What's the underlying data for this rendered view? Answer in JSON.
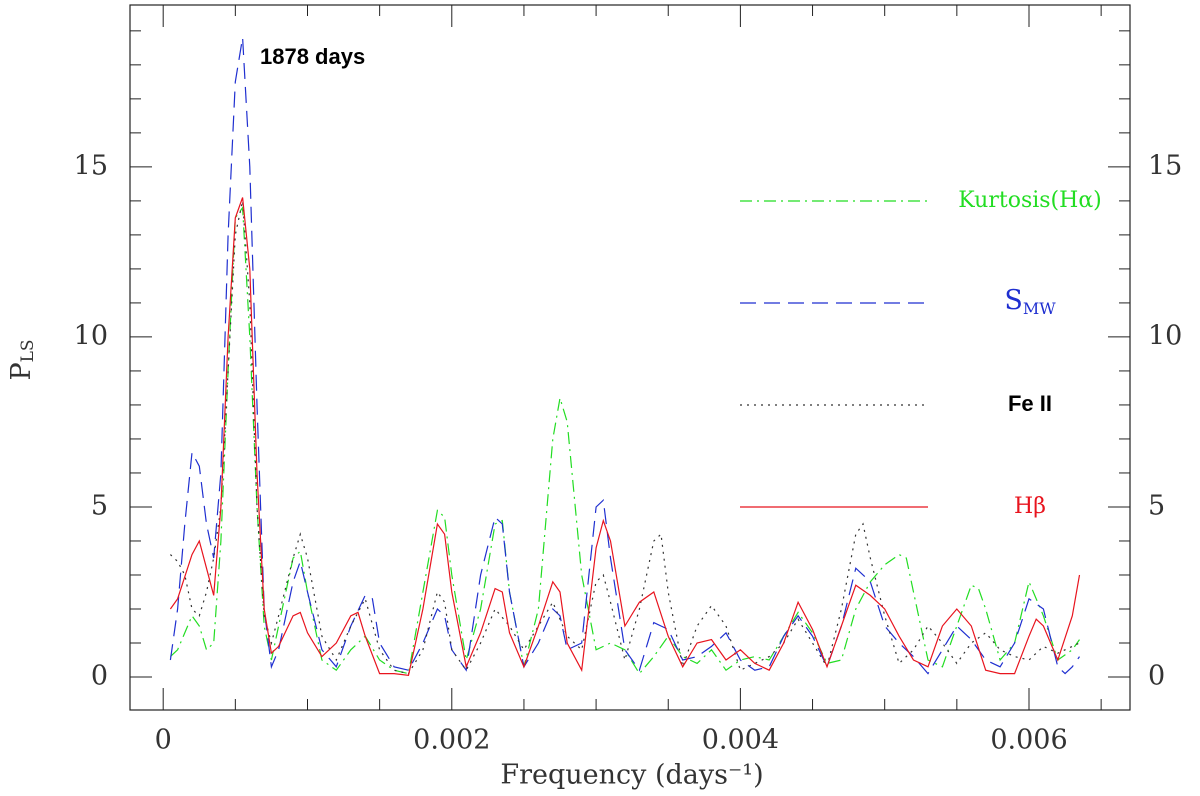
{
  "chart_data": {
    "type": "line",
    "annotation": "1878 days",
    "xlabel": "Frequency (days⁻¹)",
    "ylabel": "P",
    "ylabel_sub": "LS",
    "xlim": [
      -0.00023,
      0.0067
    ],
    "ylim": [
      -0.97,
      19.76
    ],
    "y2lim": [
      -0.97,
      19.76
    ],
    "xticks": [
      0,
      0.002,
      0.004,
      0.006
    ],
    "yticks": [
      0,
      5,
      10,
      15
    ],
    "y2ticks": [
      0,
      5,
      10,
      15
    ],
    "xticks_minor": [
      0.0005,
      0.001,
      0.0015,
      0.0025,
      0.003,
      0.0035,
      0.0045,
      0.005,
      0.0055,
      0.0065
    ],
    "yticks_minor": [
      1,
      2,
      3,
      4,
      6,
      7,
      8,
      9,
      11,
      12,
      13,
      14,
      16,
      17,
      18,
      19
    ],
    "legend": "right",
    "series": [
      {
        "name": "Kurtosis(Hα)",
        "color": "#22dd22",
        "style": "dashdot",
        "x": [
          5e-05,
          0.0001,
          0.0002,
          0.00025,
          0.0003,
          0.00035,
          0.0004,
          0.00045,
          0.0005,
          0.00055,
          0.0006,
          0.00065,
          0.0007,
          0.00075,
          0.0008,
          0.0009,
          0.00095,
          0.001,
          0.0011,
          0.0012,
          0.0013,
          0.0014,
          0.0015,
          0.0016,
          0.0017,
          0.0018,
          0.0019,
          0.00195,
          0.002,
          0.0021,
          0.0022,
          0.0023,
          0.00235,
          0.0024,
          0.0025,
          0.0026,
          0.0027,
          0.00275,
          0.0028,
          0.0029,
          0.003,
          0.0031,
          0.0032,
          0.0033,
          0.0034,
          0.0035,
          0.0036,
          0.0037,
          0.0038,
          0.0039,
          0.004,
          0.0041,
          0.0042,
          0.0043,
          0.0044,
          0.0045,
          0.0046,
          0.0047,
          0.0048,
          0.0049,
          0.005,
          0.0051,
          0.00515,
          0.0052,
          0.0053,
          0.0054,
          0.0055,
          0.0056,
          0.00565,
          0.0057,
          0.0058,
          0.0059,
          0.006,
          0.0061,
          0.0062,
          0.0063,
          0.00635
        ],
        "values": [
          0.6,
          0.8,
          1.8,
          1.5,
          0.8,
          1.0,
          4,
          9,
          13.5,
          13.8,
          10,
          5,
          1.5,
          0.5,
          1.5,
          3.5,
          3.7,
          2.5,
          0.5,
          0.2,
          0.8,
          1.2,
          0.5,
          0.2,
          0.1,
          2.5,
          4.9,
          4.7,
          3.0,
          0.5,
          2.0,
          4.5,
          4.6,
          2.5,
          0.3,
          2.0,
          7.0,
          8.2,
          7.5,
          3.0,
          0.8,
          1.0,
          0.8,
          0.1,
          0.6,
          1.2,
          0.6,
          0.4,
          0.8,
          0.2,
          0.5,
          0.6,
          0.5,
          1.2,
          1.9,
          1.3,
          0.4,
          0.5,
          2.0,
          2.8,
          3.3,
          3.6,
          3.5,
          2.5,
          0.5,
          0.3,
          1.5,
          2.7,
          2.6,
          2.0,
          0.5,
          1.0,
          2.8,
          1.8,
          0.5,
          0.8,
          1.1
        ]
      },
      {
        "name": "S",
        "subscript": "MW",
        "color": "#1f2fd0",
        "style": "dashed",
        "x": [
          5e-05,
          0.0001,
          0.00015,
          0.0002,
          0.00025,
          0.0003,
          0.00035,
          0.0004,
          0.00045,
          0.0005,
          0.00055,
          0.0006,
          0.00065,
          0.0007,
          0.00075,
          0.0008,
          0.0009,
          0.00095,
          0.001,
          0.0011,
          0.0012,
          0.0013,
          0.0014,
          0.00145,
          0.0015,
          0.0016,
          0.0017,
          0.0018,
          0.0019,
          0.00195,
          0.002,
          0.0021,
          0.0022,
          0.0023,
          0.00235,
          0.0024,
          0.0025,
          0.0026,
          0.0027,
          0.00275,
          0.0028,
          0.0029,
          0.003,
          0.00305,
          0.0031,
          0.0032,
          0.0033,
          0.0034,
          0.0035,
          0.0036,
          0.0037,
          0.0038,
          0.0039,
          0.004,
          0.0041,
          0.0042,
          0.0043,
          0.0044,
          0.0045,
          0.0046,
          0.0047,
          0.0048,
          0.0049,
          0.005,
          0.0051,
          0.0052,
          0.0053,
          0.0054,
          0.0055,
          0.0056,
          0.0057,
          0.0058,
          0.0059,
          0.006,
          0.0061,
          0.0062,
          0.00625,
          0.0063,
          0.00635
        ],
        "values": [
          0.5,
          2.0,
          4.5,
          6.6,
          6.2,
          4.5,
          3.5,
          6,
          13,
          17.5,
          18.8,
          15,
          8,
          2,
          0.3,
          0.8,
          2.8,
          3.4,
          2.5,
          0.8,
          0.3,
          1.5,
          2.4,
          2.3,
          1.0,
          0.3,
          0.2,
          1.0,
          2.0,
          1.8,
          0.8,
          0.2,
          3.0,
          4.7,
          4.5,
          2.5,
          0.3,
          1.0,
          2.0,
          1.8,
          0.8,
          1.0,
          5.0,
          5.2,
          3.5,
          0.8,
          0.2,
          1.6,
          1.4,
          0.5,
          0.6,
          0.9,
          1.3,
          0.5,
          0.2,
          0.3,
          1.2,
          1.8,
          1.2,
          0.3,
          1.5,
          3.2,
          2.8,
          1.5,
          1.0,
          0.6,
          0.1,
          0.8,
          1.5,
          1.1,
          0.5,
          0.3,
          1.0,
          2.3,
          2.0,
          0.3,
          0.1,
          0.3,
          0.6
        ]
      },
      {
        "name": "Fe II",
        "color": "#333333",
        "style": "dotted",
        "x": [
          5e-05,
          0.0001,
          0.00015,
          0.0002,
          0.00025,
          0.0003,
          0.00035,
          0.0004,
          0.00045,
          0.0005,
          0.00055,
          0.0006,
          0.00065,
          0.0007,
          0.00075,
          0.0008,
          0.0009,
          0.00095,
          0.001,
          0.0011,
          0.0012,
          0.0013,
          0.0014,
          0.0015,
          0.0016,
          0.0017,
          0.0018,
          0.0019,
          0.00195,
          0.002,
          0.0021,
          0.0022,
          0.0023,
          0.0024,
          0.0025,
          0.0026,
          0.0027,
          0.0028,
          0.0029,
          0.003,
          0.00305,
          0.0031,
          0.0032,
          0.0033,
          0.0034,
          0.00345,
          0.0035,
          0.0036,
          0.0037,
          0.0038,
          0.0039,
          0.004,
          0.0041,
          0.0042,
          0.0043,
          0.0044,
          0.0045,
          0.0046,
          0.0047,
          0.0048,
          0.00485,
          0.0049,
          0.005,
          0.0051,
          0.0052,
          0.0053,
          0.0054,
          0.0055,
          0.0056,
          0.0057,
          0.0058,
          0.0059,
          0.006,
          0.0061,
          0.0062,
          0.0063,
          0.00635
        ],
        "values": [
          3.6,
          3.4,
          3.0,
          2.0,
          1.8,
          2.5,
          3.5,
          5,
          9,
          13,
          14,
          11,
          5,
          1.8,
          1.0,
          1.8,
          3.5,
          4.2,
          3.5,
          1.2,
          0.5,
          1.5,
          2.3,
          0.8,
          0.2,
          0.1,
          0.8,
          2.5,
          2.2,
          0.8,
          0.2,
          1.0,
          2.0,
          1.5,
          0.8,
          1.5,
          2.2,
          1.2,
          0.8,
          2.8,
          3.0,
          2.2,
          0.5,
          2.0,
          4.0,
          4.2,
          2.5,
          0.3,
          1.5,
          2.1,
          1.5,
          0.2,
          0.4,
          0.6,
          1.0,
          1.7,
          1.0,
          0.3,
          2.0,
          4.2,
          4.5,
          3.5,
          1.8,
          0.4,
          0.8,
          1.5,
          1.0,
          0.4,
          1.0,
          1.3,
          0.8,
          0.6,
          0.5,
          0.9,
          0.7,
          0.9,
          1.0
        ]
      },
      {
        "name": "Hβ",
        "color": "#e8141e",
        "style": "solid",
        "x": [
          5e-05,
          0.0001,
          0.0002,
          0.00025,
          0.0003,
          0.00035,
          0.0004,
          0.00045,
          0.0005,
          0.00055,
          0.0006,
          0.00065,
          0.0007,
          0.00075,
          0.0008,
          0.0009,
          0.00095,
          0.001,
          0.0011,
          0.0012,
          0.0013,
          0.00135,
          0.0014,
          0.0015,
          0.0016,
          0.0017,
          0.0018,
          0.0019,
          0.00195,
          0.002,
          0.0021,
          0.0022,
          0.0023,
          0.00235,
          0.0024,
          0.0025,
          0.0026,
          0.0027,
          0.00275,
          0.0028,
          0.0029,
          0.003,
          0.00305,
          0.0031,
          0.0032,
          0.0033,
          0.0034,
          0.0035,
          0.0036,
          0.0037,
          0.0038,
          0.0039,
          0.004,
          0.0041,
          0.0042,
          0.0043,
          0.0044,
          0.0045,
          0.0046,
          0.0047,
          0.0048,
          0.0049,
          0.005,
          0.0051,
          0.0052,
          0.0053,
          0.0054,
          0.0055,
          0.0056,
          0.0057,
          0.0058,
          0.0059,
          0.006,
          0.00605,
          0.0061,
          0.0062,
          0.0063,
          0.00635
        ],
        "values": [
          2.0,
          2.3,
          3.6,
          4.0,
          3.2,
          2.4,
          5.0,
          10,
          13.5,
          14.1,
          12,
          6,
          2.0,
          0.7,
          0.9,
          1.8,
          1.9,
          1.3,
          0.6,
          1.0,
          1.8,
          1.9,
          1.2,
          0.1,
          0.1,
          0.05,
          2.0,
          4.5,
          4.2,
          2.5,
          0.3,
          1.3,
          2.6,
          2.5,
          1.3,
          0.3,
          1.5,
          2.8,
          2.5,
          1.0,
          0.2,
          3.8,
          4.6,
          4.0,
          1.5,
          2.2,
          2.5,
          1.2,
          0.3,
          1.0,
          1.1,
          0.5,
          0.8,
          0.4,
          0.2,
          1.0,
          2.2,
          1.4,
          0.3,
          1.5,
          2.7,
          2.4,
          2.0,
          1.2,
          0.5,
          0.3,
          1.5,
          2.0,
          1.5,
          0.2,
          0.1,
          0.1,
          1.2,
          1.7,
          1.5,
          0.5,
          1.8,
          3.0
        ]
      }
    ]
  }
}
